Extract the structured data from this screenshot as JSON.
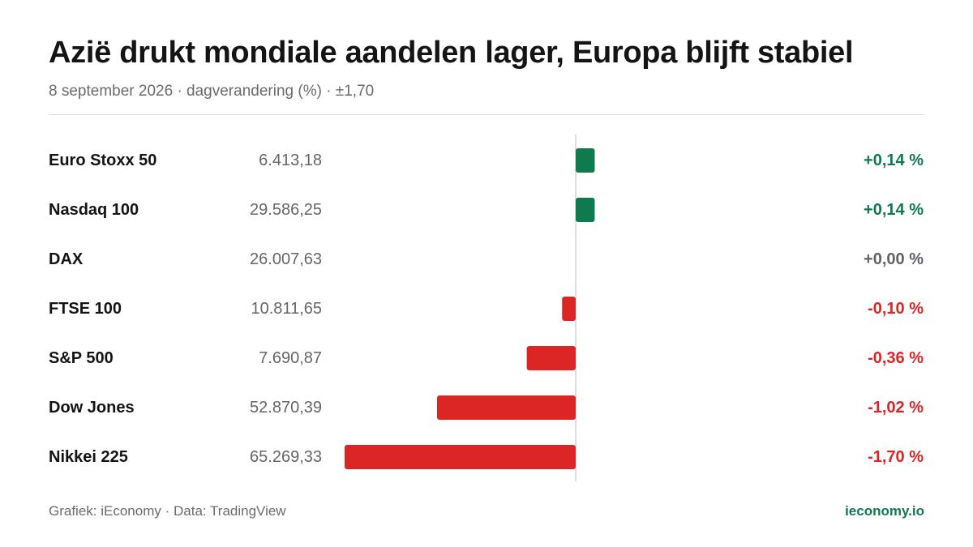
{
  "header": {
    "title": "Azië drukt mondiale aandelen lager, Europa blijft stabiel",
    "subtitle": "8 september 2026 · dagverandering (%) · ±1,70"
  },
  "footer": {
    "source": "Grafiek: iEconomy · Data: TradingView",
    "site": "ieconomy.io"
  },
  "colors": {
    "positive": "#0f7a4e",
    "negative": "#dc2626",
    "neutral": "#5f6368",
    "axis": "#d4d4d4"
  },
  "chart_data": {
    "type": "bar",
    "orientation": "horizontal",
    "xlim": [
      -1.7,
      1.7
    ],
    "rows": [
      {
        "name": "Euro Stoxx 50",
        "level": "6.413,18",
        "change": 0.14,
        "label": "+0,14 %"
      },
      {
        "name": "Nasdaq 100",
        "level": "29.586,25",
        "change": 0.14,
        "label": "+0,14 %"
      },
      {
        "name": "DAX",
        "level": "26.007,63",
        "change": 0.0,
        "label": "+0,00 %"
      },
      {
        "name": "FTSE 100",
        "level": "10.811,65",
        "change": -0.1,
        "label": "-0,10 %"
      },
      {
        "name": "S&P 500",
        "level": "7.690,87",
        "change": -0.36,
        "label": "-0,36 %"
      },
      {
        "name": "Dow Jones",
        "level": "52.870,39",
        "change": -1.02,
        "label": "-1,02 %"
      },
      {
        "name": "Nikkei 225",
        "level": "65.269,33",
        "change": -1.7,
        "label": "-1,70 %"
      }
    ]
  }
}
